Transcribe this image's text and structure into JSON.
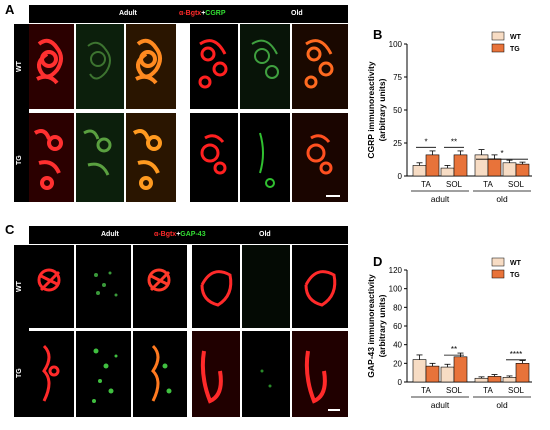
{
  "panels": {
    "A": {
      "label": "A",
      "header": {
        "left": "Adult",
        "stain_red": "α-Bgtx",
        "plus": "+",
        "stain_green": "CGRP",
        "right": "Old"
      },
      "rows": [
        "WT",
        "TG"
      ]
    },
    "C": {
      "label": "C",
      "header": {
        "left": "Adult",
        "stain_red": "α-Bgtx",
        "plus": "+",
        "stain_green": "GAP-43",
        "right": "Old"
      },
      "rows": [
        "WT",
        "TG"
      ]
    },
    "B": {
      "label": "B"
    },
    "D": {
      "label": "D"
    }
  },
  "chart_data": [
    {
      "type": "bar",
      "panel": "B",
      "ylabel": "CGRP immunoreactivity",
      "ylabel2": "(arbitrary units)",
      "ylim": [
        0,
        100
      ],
      "yticks": [
        0,
        25,
        50,
        75,
        100
      ],
      "categories": [
        "TA",
        "SOL",
        "TA",
        "SOL"
      ],
      "groups": [
        "adult",
        "old"
      ],
      "series": [
        {
          "name": "WT",
          "color": "#f7dcc4",
          "values": [
            8,
            6,
            16,
            10
          ],
          "errors": [
            2,
            2,
            4,
            2
          ]
        },
        {
          "name": "TG",
          "color": "#e8733a",
          "values": [
            16,
            16,
            13,
            9
          ],
          "errors": [
            3,
            3,
            3,
            1.5
          ]
        }
      ],
      "significance": [
        "*",
        "**",
        "*"
      ]
    },
    {
      "type": "bar",
      "panel": "D",
      "ylabel": "GAP-43 immunoreactivity",
      "ylabel2": "(arbitrary units)",
      "ylim": [
        0,
        120
      ],
      "yticks": [
        0,
        20,
        40,
        60,
        80,
        100,
        120
      ],
      "categories": [
        "TA",
        "SOL",
        "TA",
        "SOL"
      ],
      "groups": [
        "adult",
        "old"
      ],
      "series": [
        {
          "name": "WT",
          "color": "#f7dcc4",
          "values": [
            24,
            16,
            4,
            5
          ],
          "errors": [
            5,
            3,
            1.5,
            1.5
          ]
        },
        {
          "name": "TG",
          "color": "#e8733a",
          "values": [
            17,
            27,
            6,
            20
          ],
          "errors": [
            3,
            4,
            2,
            3
          ]
        }
      ],
      "significance": [
        "**",
        "****"
      ]
    }
  ]
}
